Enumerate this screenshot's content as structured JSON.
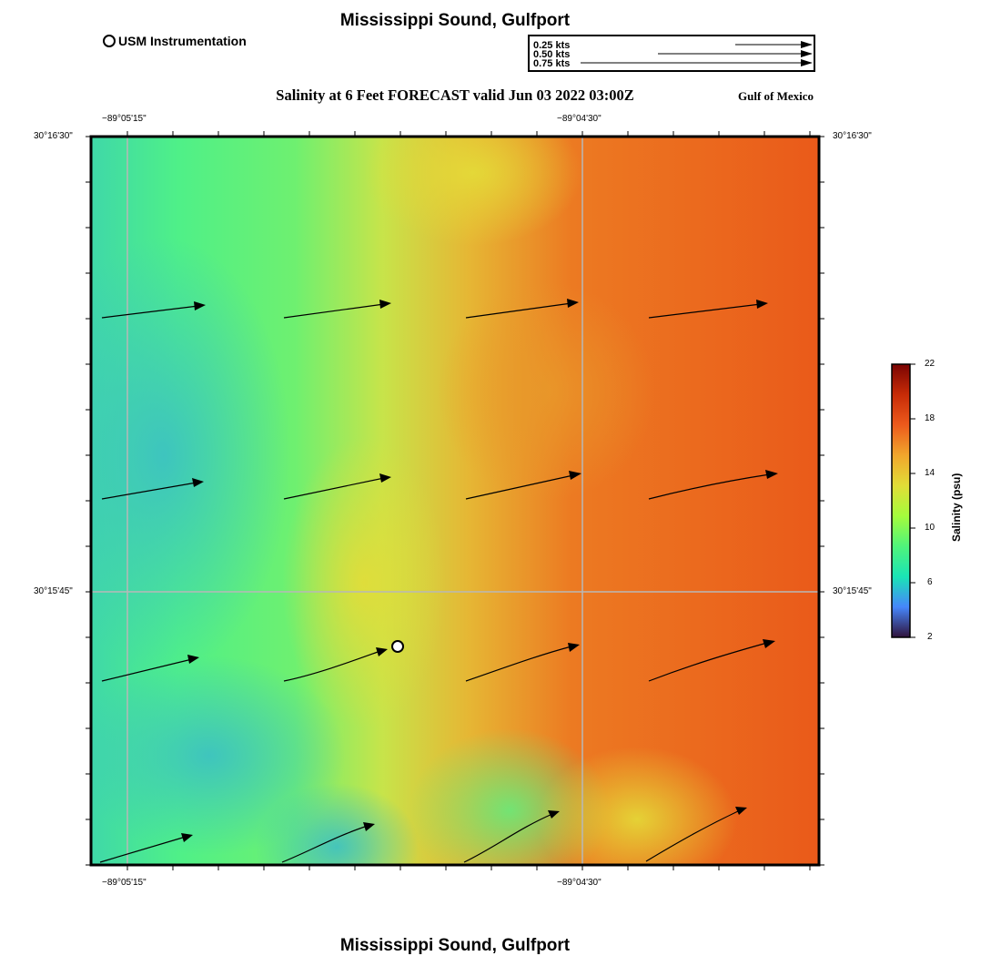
{
  "header": {
    "title": "Mississippi Sound, Gulfport",
    "station_legend": "USM Instrumentation",
    "subtitle": "Salinity at 6 Feet FORECAST valid Jun 03 2022 03:00Z",
    "region": "Gulf of Mexico"
  },
  "footer": {
    "title": "Mississippi Sound, Gulfport"
  },
  "vector_legend": {
    "labels": [
      "0.25 kts",
      "0.50 kts",
      "0.75 kts"
    ],
    "speeds": [
      0.25,
      0.5,
      0.75
    ]
  },
  "axes": {
    "lon_labels": [
      "−89°05'15\"",
      "−89°04'30\""
    ],
    "lat_labels": [
      "30°16'30\"",
      "30°15'45\""
    ]
  },
  "colorbar": {
    "title": "Salinity (psu)",
    "ticks": [
      "22",
      "18",
      "14",
      "10",
      "6",
      "2"
    ],
    "min": 2,
    "max": 22,
    "stops": [
      "#30123b",
      "#4686fb",
      "#1ae4b6",
      "#4ff47b",
      "#a4fc3c",
      "#e1dd37",
      "#f1a62c",
      "#ec5a1c",
      "#c72b07",
      "#7a0403"
    ]
  },
  "colors": {
    "grid": "#b8b8b8",
    "frame": "#000000",
    "vector": "#000000"
  }
}
